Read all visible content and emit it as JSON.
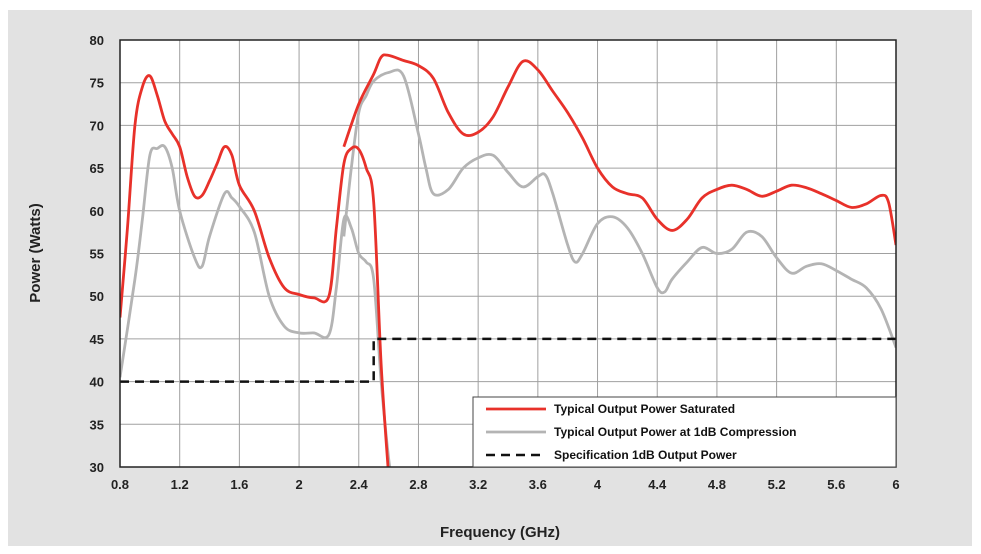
{
  "chart_data": {
    "type": "line",
    "title": "",
    "xlabel": "Frequency (GHz)",
    "ylabel": "Power (Watts)",
    "xlim": [
      0.8,
      6
    ],
    "ylim": [
      30,
      80
    ],
    "xticks": [
      0.8,
      1.2,
      1.6,
      2,
      2.4,
      2.8,
      3.2,
      3.6,
      4,
      4.4,
      4.8,
      5.2,
      5.6,
      6
    ],
    "xtick_labels": [
      "0.8",
      "1.2",
      "1.6",
      "2",
      "2.4",
      "2.8",
      "3.2",
      "3.6",
      "4",
      "4.4",
      "4.8",
      "5.2",
      "5.6",
      "6"
    ],
    "yticks": [
      30,
      35,
      40,
      45,
      50,
      55,
      60,
      65,
      70,
      75,
      80
    ],
    "ytick_labels": [
      "30",
      "35",
      "40",
      "45",
      "50",
      "55",
      "60",
      "65",
      "70",
      "75",
      "80"
    ],
    "grid": true,
    "legend_position": "bottom-right",
    "series": [
      {
        "name": "Typical Output Power Saturated",
        "color": "#e8312a",
        "style": "solid",
        "segments": [
          [
            [
              0.8,
              47.5
            ],
            [
              0.85,
              58
            ],
            [
              0.9,
              70
            ],
            [
              0.95,
              74.5
            ],
            [
              1.0,
              75.8
            ],
            [
              1.05,
              73.5
            ],
            [
              1.1,
              70.5
            ],
            [
              1.15,
              69
            ],
            [
              1.2,
              67.5
            ],
            [
              1.25,
              64
            ],
            [
              1.3,
              61.7
            ],
            [
              1.35,
              61.8
            ],
            [
              1.4,
              63.5
            ],
            [
              1.45,
              65.5
            ],
            [
              1.5,
              67.5
            ],
            [
              1.55,
              66.5
            ],
            [
              1.6,
              63
            ],
            [
              1.7,
              60
            ],
            [
              1.8,
              54.5
            ],
            [
              1.9,
              51
            ],
            [
              2.0,
              50.2
            ],
            [
              2.1,
              49.8
            ],
            [
              2.2,
              50
            ],
            [
              2.25,
              58
            ],
            [
              2.3,
              65.5
            ],
            [
              2.35,
              67.3
            ],
            [
              2.4,
              67.2
            ],
            [
              2.45,
              65
            ],
            [
              2.5,
              61
            ],
            [
              2.55,
              42
            ],
            [
              2.6,
              29
            ]
          ],
          [
            [
              2.3,
              67.5
            ],
            [
              2.4,
              72.5
            ],
            [
              2.5,
              76
            ],
            [
              2.55,
              78
            ],
            [
              2.6,
              78.2
            ],
            [
              2.7,
              77.6
            ],
            [
              2.8,
              77
            ],
            [
              2.9,
              75.5
            ],
            [
              3.0,
              71.5
            ],
            [
              3.1,
              69
            ],
            [
              3.2,
              69.2
            ],
            [
              3.3,
              71
            ],
            [
              3.4,
              74.5
            ],
            [
              3.5,
              77.5
            ],
            [
              3.6,
              76.5
            ],
            [
              3.7,
              74
            ],
            [
              3.8,
              71.5
            ],
            [
              3.9,
              68.5
            ],
            [
              4.0,
              65
            ],
            [
              4.1,
              62.8
            ],
            [
              4.2,
              62
            ],
            [
              4.3,
              61.5
            ],
            [
              4.4,
              59
            ],
            [
              4.5,
              57.7
            ],
            [
              4.6,
              59
            ],
            [
              4.7,
              61.5
            ],
            [
              4.8,
              62.5
            ],
            [
              4.9,
              63
            ],
            [
              5.0,
              62.5
            ],
            [
              5.1,
              61.7
            ],
            [
              5.2,
              62.3
            ],
            [
              5.3,
              63
            ],
            [
              5.4,
              62.7
            ],
            [
              5.5,
              62
            ],
            [
              5.6,
              61.2
            ],
            [
              5.7,
              60.4
            ],
            [
              5.8,
              60.8
            ],
            [
              5.9,
              61.8
            ],
            [
              5.95,
              61
            ],
            [
              6.0,
              56
            ]
          ]
        ]
      },
      {
        "name": "Typical Output Power at 1dB Compression",
        "color": "#b4b4b4",
        "style": "solid",
        "segments": [
          [
            [
              0.8,
              40.5
            ],
            [
              0.9,
              52
            ],
            [
              0.95,
              59
            ],
            [
              1.0,
              66.5
            ],
            [
              1.05,
              67.3
            ],
            [
              1.1,
              67.5
            ],
            [
              1.15,
              65
            ],
            [
              1.2,
              60
            ],
            [
              1.3,
              54.5
            ],
            [
              1.35,
              53.5
            ],
            [
              1.4,
              57
            ],
            [
              1.5,
              62
            ],
            [
              1.55,
              61.5
            ],
            [
              1.6,
              60.5
            ],
            [
              1.7,
              57.5
            ],
            [
              1.8,
              50
            ],
            [
              1.9,
              46.5
            ],
            [
              2.0,
              45.7
            ],
            [
              2.1,
              45.7
            ],
            [
              2.2,
              45.5
            ],
            [
              2.25,
              51
            ],
            [
              2.3,
              59
            ],
            [
              2.35,
              58
            ],
            [
              2.4,
              55
            ],
            [
              2.45,
              54
            ],
            [
              2.5,
              52
            ],
            [
              2.55,
              40
            ],
            [
              2.6,
              31
            ],
            [
              2.62,
              29
            ]
          ],
          [
            [
              2.3,
              57
            ],
            [
              2.35,
              65
            ],
            [
              2.4,
              71.5
            ],
            [
              2.45,
              73.5
            ],
            [
              2.5,
              75.2
            ],
            [
              2.6,
              76.2
            ],
            [
              2.7,
              75.8
            ],
            [
              2.8,
              69
            ],
            [
              2.85,
              65
            ],
            [
              2.9,
              62
            ],
            [
              3.0,
              62.5
            ],
            [
              3.1,
              65
            ],
            [
              3.2,
              66.2
            ],
            [
              3.3,
              66.5
            ],
            [
              3.4,
              64.5
            ],
            [
              3.5,
              62.8
            ],
            [
              3.6,
              64
            ],
            [
              3.65,
              64.2
            ],
            [
              3.7,
              62
            ],
            [
              3.8,
              56
            ],
            [
              3.85,
              54
            ],
            [
              3.9,
              55
            ],
            [
              4.0,
              58.5
            ],
            [
              4.1,
              59.3
            ],
            [
              4.2,
              58
            ],
            [
              4.3,
              55
            ],
            [
              4.4,
              51
            ],
            [
              4.45,
              50.5
            ],
            [
              4.5,
              52
            ],
            [
              4.6,
              54
            ],
            [
              4.7,
              55.7
            ],
            [
              4.8,
              55
            ],
            [
              4.9,
              55.5
            ],
            [
              5.0,
              57.5
            ],
            [
              5.1,
              57
            ],
            [
              5.2,
              54.5
            ],
            [
              5.3,
              52.7
            ],
            [
              5.4,
              53.5
            ],
            [
              5.5,
              53.8
            ],
            [
              5.6,
              53
            ],
            [
              5.7,
              52
            ],
            [
              5.8,
              51
            ],
            [
              5.9,
              48.5
            ],
            [
              6.0,
              44
            ]
          ]
        ]
      },
      {
        "name": "Specification 1dB Output Power",
        "color": "#111111",
        "style": "dashed",
        "segments": [
          [
            [
              0.8,
              40
            ],
            [
              2.5,
              40
            ],
            [
              2.5,
              45
            ],
            [
              6.0,
              45
            ]
          ]
        ]
      }
    ]
  }
}
